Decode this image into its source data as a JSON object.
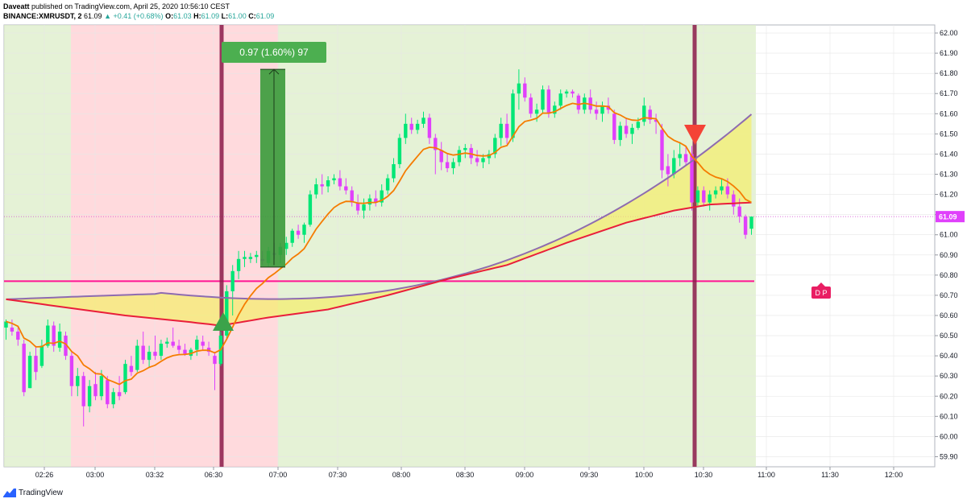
{
  "header": {
    "publisher": "Daveatt",
    "published_text": "published on TradingView.com, April 25, 2020 10:56:10 CEST",
    "symbol": "BINANCE:XMRUSDT, 2",
    "last": "61.09",
    "change": "+0.41 (+0.68%)",
    "o_label": "O:",
    "o_value": "61.03",
    "h_label": "H:",
    "h_value": "61.09",
    "l_label": "L:",
    "l_value": "61.00",
    "c_label": "C:",
    "c_value": "61.09"
  },
  "footer": {
    "brand": "TradingView"
  },
  "chart_data": {
    "type": "candlestick",
    "title": "",
    "xlabel": "",
    "ylabel": "",
    "ylim": [
      59.85,
      62.04
    ],
    "y_ticks": [
      "62.00",
      "61.90",
      "61.80",
      "61.70",
      "61.60",
      "61.50",
      "61.40",
      "61.30",
      "61.20",
      "61.10",
      "61.00",
      "60.90",
      "60.80",
      "60.70",
      "60.60",
      "60.50",
      "60.40",
      "60.30",
      "60.20",
      "60.10",
      "60.00",
      "59.90"
    ],
    "x_ticks": [
      "02:26",
      "03:00",
      "03:32",
      "06:30",
      "07:00",
      "07:30",
      "08:00",
      "08:30",
      "09:00",
      "09:30",
      "10:00",
      "10:30",
      "11:00",
      "11:30",
      "12:00"
    ],
    "last_price_label": "61.09",
    "trade_label": "0.97 (1.60%) 97",
    "dp_label": "D P",
    "colors": {
      "up": "#00e676",
      "down": "#e040fb",
      "ema": "#f57c00",
      "red_ma": "#e91e3a",
      "purple_ma": "#8e6bb0",
      "bg_red": "#ffcdd2",
      "bg_green": "#dcedc8",
      "fill": "#f5ee6a",
      "vline": "#8b1a4a",
      "magenta": "#ff1493"
    },
    "candles": [
      {
        "x": 0,
        "o": 60.54,
        "h": 60.58,
        "l": 60.48,
        "c": 60.57
      },
      {
        "x": 1,
        "o": 60.54,
        "h": 60.58,
        "l": 60.5,
        "c": 60.52
      },
      {
        "x": 2,
        "o": 60.52,
        "h": 60.55,
        "l": 60.45,
        "c": 60.48
      },
      {
        "x": 3,
        "o": 60.46,
        "h": 60.48,
        "l": 60.2,
        "c": 60.22
      },
      {
        "x": 4,
        "o": 60.24,
        "h": 60.42,
        "l": 60.24,
        "c": 60.4
      },
      {
        "x": 5,
        "o": 60.4,
        "h": 60.45,
        "l": 60.28,
        "c": 60.32
      },
      {
        "x": 6,
        "o": 60.35,
        "h": 60.48,
        "l": 60.34,
        "c": 60.45
      },
      {
        "x": 7,
        "o": 60.45,
        "h": 60.58,
        "l": 60.44,
        "c": 60.55
      },
      {
        "x": 8,
        "o": 60.55,
        "h": 60.57,
        "l": 60.42,
        "c": 60.45
      },
      {
        "x": 9,
        "o": 60.44,
        "h": 60.56,
        "l": 60.42,
        "c": 60.52
      },
      {
        "x": 10,
        "o": 60.5,
        "h": 60.52,
        "l": 60.38,
        "c": 60.4
      },
      {
        "x": 11,
        "o": 60.4,
        "h": 60.42,
        "l": 60.2,
        "c": 60.25
      },
      {
        "x": 12,
        "o": 60.25,
        "h": 60.34,
        "l": 60.2,
        "c": 60.3
      },
      {
        "x": 13,
        "o": 60.3,
        "h": 60.32,
        "l": 60.05,
        "c": 60.15
      },
      {
        "x": 14,
        "o": 60.15,
        "h": 60.28,
        "l": 60.12,
        "c": 60.25
      },
      {
        "x": 15,
        "o": 60.26,
        "h": 60.32,
        "l": 60.18,
        "c": 60.2
      },
      {
        "x": 16,
        "o": 60.2,
        "h": 60.33,
        "l": 60.18,
        "c": 60.3
      },
      {
        "x": 17,
        "o": 60.28,
        "h": 60.3,
        "l": 60.14,
        "c": 60.16
      },
      {
        "x": 18,
        "o": 60.16,
        "h": 60.24,
        "l": 60.14,
        "c": 60.22
      },
      {
        "x": 19,
        "o": 60.22,
        "h": 60.3,
        "l": 60.18,
        "c": 60.2
      },
      {
        "x": 20,
        "o": 60.22,
        "h": 60.38,
        "l": 60.21,
        "c": 60.36
      },
      {
        "x": 21,
        "o": 60.35,
        "h": 60.4,
        "l": 60.3,
        "c": 60.32
      },
      {
        "x": 22,
        "o": 60.33,
        "h": 60.48,
        "l": 60.32,
        "c": 60.45
      },
      {
        "x": 23,
        "o": 60.45,
        "h": 60.52,
        "l": 60.36,
        "c": 60.38
      },
      {
        "x": 24,
        "o": 60.38,
        "h": 60.45,
        "l": 60.34,
        "c": 60.42
      },
      {
        "x": 25,
        "o": 60.42,
        "h": 60.5,
        "l": 60.38,
        "c": 60.4
      },
      {
        "x": 26,
        "o": 60.4,
        "h": 60.48,
        "l": 60.38,
        "c": 60.46
      },
      {
        "x": 27,
        "o": 60.46,
        "h": 60.49,
        "l": 60.44,
        "c": 60.47
      },
      {
        "x": 28,
        "o": 60.47,
        "h": 60.54,
        "l": 60.44,
        "c": 60.45
      },
      {
        "x": 29,
        "o": 60.45,
        "h": 60.48,
        "l": 60.41,
        "c": 60.43
      },
      {
        "x": 30,
        "o": 60.43,
        "h": 60.46,
        "l": 60.4,
        "c": 60.41
      },
      {
        "x": 31,
        "o": 60.4,
        "h": 60.44,
        "l": 60.38,
        "c": 60.43
      },
      {
        "x": 32,
        "o": 60.43,
        "h": 60.5,
        "l": 60.4,
        "c": 60.48
      },
      {
        "x": 33,
        "o": 60.47,
        "h": 60.5,
        "l": 60.43,
        "c": 60.45
      },
      {
        "x": 34,
        "o": 60.44,
        "h": 60.47,
        "l": 60.4,
        "c": 60.42
      },
      {
        "x": 35,
        "o": 60.4,
        "h": 60.42,
        "l": 60.23,
        "c": 60.36
      },
      {
        "x": 36,
        "o": 60.36,
        "h": 60.52,
        "l": 60.35,
        "c": 60.5
      },
      {
        "x": 37,
        "o": 60.5,
        "h": 60.75,
        "l": 60.48,
        "c": 60.72
      },
      {
        "x": 38,
        "o": 60.72,
        "h": 60.85,
        "l": 60.6,
        "c": 60.82
      },
      {
        "x": 39,
        "o": 60.82,
        "h": 60.92,
        "l": 60.78,
        "c": 60.88
      },
      {
        "x": 40,
        "o": 60.88,
        "h": 60.92,
        "l": 60.84,
        "c": 60.89
      },
      {
        "x": 41,
        "o": 60.88,
        "h": 60.91,
        "l": 60.86,
        "c": 60.89
      },
      {
        "x": 42,
        "o": 60.89,
        "h": 60.92,
        "l": 60.86,
        "c": 60.9
      },
      {
        "x": 43,
        "o": 60.88,
        "h": 60.92,
        "l": 60.85,
        "c": 60.87
      },
      {
        "x": 44,
        "o": 60.86,
        "h": 60.94,
        "l": 60.84,
        "c": 60.92
      },
      {
        "x": 45,
        "o": 60.91,
        "h": 60.96,
        "l": 60.88,
        "c": 60.9
      },
      {
        "x": 46,
        "o": 60.9,
        "h": 60.96,
        "l": 60.86,
        "c": 60.94
      },
      {
        "x": 47,
        "o": 60.93,
        "h": 60.99,
        "l": 60.9,
        "c": 60.96
      },
      {
        "x": 48,
        "o": 60.96,
        "h": 61.03,
        "l": 60.94,
        "c": 61.02
      },
      {
        "x": 49,
        "o": 61.02,
        "h": 61.05,
        "l": 60.98,
        "c": 61.0
      },
      {
        "x": 50,
        "o": 61.0,
        "h": 61.06,
        "l": 60.96,
        "c": 61.05
      },
      {
        "x": 51,
        "o": 61.05,
        "h": 61.22,
        "l": 61.04,
        "c": 61.2
      },
      {
        "x": 52,
        "o": 61.2,
        "h": 61.28,
        "l": 61.18,
        "c": 61.25
      },
      {
        "x": 53,
        "o": 61.25,
        "h": 61.3,
        "l": 61.2,
        "c": 61.24
      },
      {
        "x": 54,
        "o": 61.24,
        "h": 61.29,
        "l": 61.21,
        "c": 61.27
      },
      {
        "x": 55,
        "o": 61.27,
        "h": 61.3,
        "l": 61.25,
        "c": 61.28
      },
      {
        "x": 56,
        "o": 61.28,
        "h": 61.32,
        "l": 61.22,
        "c": 61.24
      },
      {
        "x": 57,
        "o": 61.24,
        "h": 61.28,
        "l": 61.2,
        "c": 61.22
      },
      {
        "x": 58,
        "o": 61.22,
        "h": 61.24,
        "l": 61.14,
        "c": 61.16
      },
      {
        "x": 59,
        "o": 61.16,
        "h": 61.2,
        "l": 61.1,
        "c": 61.12
      },
      {
        "x": 60,
        "o": 61.12,
        "h": 61.18,
        "l": 61.08,
        "c": 61.15
      },
      {
        "x": 61,
        "o": 61.15,
        "h": 61.2,
        "l": 61.12,
        "c": 61.18
      },
      {
        "x": 62,
        "o": 61.18,
        "h": 61.22,
        "l": 61.14,
        "c": 61.16
      },
      {
        "x": 63,
        "o": 61.16,
        "h": 61.25,
        "l": 61.14,
        "c": 61.22
      },
      {
        "x": 64,
        "o": 61.22,
        "h": 61.3,
        "l": 61.2,
        "c": 61.28
      },
      {
        "x": 65,
        "o": 61.28,
        "h": 61.38,
        "l": 61.26,
        "c": 61.35
      },
      {
        "x": 66,
        "o": 61.35,
        "h": 61.5,
        "l": 61.33,
        "c": 61.48
      },
      {
        "x": 67,
        "o": 61.48,
        "h": 61.6,
        "l": 61.45,
        "c": 61.55
      },
      {
        "x": 68,
        "o": 61.55,
        "h": 61.58,
        "l": 61.5,
        "c": 61.52
      },
      {
        "x": 69,
        "o": 61.52,
        "h": 61.57,
        "l": 61.5,
        "c": 61.55
      },
      {
        "x": 70,
        "o": 61.55,
        "h": 61.61,
        "l": 61.53,
        "c": 61.58
      },
      {
        "x": 71,
        "o": 61.58,
        "h": 61.6,
        "l": 61.45,
        "c": 61.48
      },
      {
        "x": 72,
        "o": 61.48,
        "h": 61.5,
        "l": 61.3,
        "c": 61.42
      },
      {
        "x": 73,
        "o": 61.42,
        "h": 61.46,
        "l": 61.32,
        "c": 61.36
      },
      {
        "x": 74,
        "o": 61.36,
        "h": 61.4,
        "l": 61.31,
        "c": 61.33
      },
      {
        "x": 75,
        "o": 61.33,
        "h": 61.38,
        "l": 61.3,
        "c": 61.36
      },
      {
        "x": 76,
        "o": 61.36,
        "h": 61.44,
        "l": 61.34,
        "c": 61.42
      },
      {
        "x": 77,
        "o": 61.42,
        "h": 61.45,
        "l": 61.38,
        "c": 61.43
      },
      {
        "x": 78,
        "o": 61.43,
        "h": 61.45,
        "l": 61.35,
        "c": 61.38
      },
      {
        "x": 79,
        "o": 61.38,
        "h": 61.42,
        "l": 61.34,
        "c": 61.36
      },
      {
        "x": 80,
        "o": 61.36,
        "h": 61.4,
        "l": 61.33,
        "c": 61.38
      },
      {
        "x": 81,
        "o": 61.38,
        "h": 61.42,
        "l": 61.35,
        "c": 61.4
      },
      {
        "x": 82,
        "o": 61.4,
        "h": 61.5,
        "l": 61.38,
        "c": 61.48
      },
      {
        "x": 83,
        "o": 61.48,
        "h": 61.58,
        "l": 61.44,
        "c": 61.55
      },
      {
        "x": 84,
        "o": 61.55,
        "h": 61.6,
        "l": 61.45,
        "c": 61.48
      },
      {
        "x": 85,
        "o": 61.48,
        "h": 61.72,
        "l": 61.46,
        "c": 61.7
      },
      {
        "x": 86,
        "o": 61.7,
        "h": 61.82,
        "l": 61.62,
        "c": 61.75
      },
      {
        "x": 87,
        "o": 61.75,
        "h": 61.78,
        "l": 61.66,
        "c": 61.68
      },
      {
        "x": 88,
        "o": 61.68,
        "h": 61.7,
        "l": 61.58,
        "c": 61.6
      },
      {
        "x": 89,
        "o": 61.6,
        "h": 61.65,
        "l": 61.56,
        "c": 61.62
      },
      {
        "x": 90,
        "o": 61.62,
        "h": 61.74,
        "l": 61.6,
        "c": 61.72
      },
      {
        "x": 91,
        "o": 61.72,
        "h": 61.74,
        "l": 61.58,
        "c": 61.6
      },
      {
        "x": 92,
        "o": 61.6,
        "h": 61.66,
        "l": 61.58,
        "c": 61.64
      },
      {
        "x": 93,
        "o": 61.64,
        "h": 61.72,
        "l": 61.62,
        "c": 61.7
      },
      {
        "x": 94,
        "o": 61.7,
        "h": 61.72,
        "l": 61.68,
        "c": 61.71
      },
      {
        "x": 95,
        "o": 61.71,
        "h": 61.72,
        "l": 61.68,
        "c": 61.7
      },
      {
        "x": 96,
        "o": 61.69,
        "h": 61.7,
        "l": 61.6,
        "c": 61.62
      },
      {
        "x": 97,
        "o": 61.62,
        "h": 61.7,
        "l": 61.6,
        "c": 61.68
      },
      {
        "x": 98,
        "o": 61.68,
        "h": 61.72,
        "l": 61.6,
        "c": 61.62
      },
      {
        "x": 99,
        "o": 61.62,
        "h": 61.66,
        "l": 61.57,
        "c": 61.6
      },
      {
        "x": 100,
        "o": 61.6,
        "h": 61.66,
        "l": 61.56,
        "c": 61.64
      },
      {
        "x": 101,
        "o": 61.64,
        "h": 61.68,
        "l": 61.6,
        "c": 61.62
      },
      {
        "x": 102,
        "o": 61.6,
        "h": 61.62,
        "l": 61.45,
        "c": 61.47
      },
      {
        "x": 103,
        "o": 61.47,
        "h": 61.56,
        "l": 61.44,
        "c": 61.54
      },
      {
        "x": 104,
        "o": 61.54,
        "h": 61.58,
        "l": 61.48,
        "c": 61.5
      },
      {
        "x": 105,
        "o": 61.5,
        "h": 61.55,
        "l": 61.45,
        "c": 61.53
      },
      {
        "x": 106,
        "o": 61.53,
        "h": 61.58,
        "l": 61.52,
        "c": 61.56
      },
      {
        "x": 107,
        "o": 61.56,
        "h": 61.68,
        "l": 61.54,
        "c": 61.64
      },
      {
        "x": 108,
        "o": 61.62,
        "h": 61.64,
        "l": 61.55,
        "c": 61.57
      },
      {
        "x": 109,
        "o": 61.57,
        "h": 61.6,
        "l": 61.5,
        "c": 61.56
      },
      {
        "x": 110,
        "o": 61.52,
        "h": 61.55,
        "l": 61.28,
        "c": 61.32
      },
      {
        "x": 111,
        "o": 61.34,
        "h": 61.4,
        "l": 61.24,
        "c": 61.3
      },
      {
        "x": 112,
        "o": 61.3,
        "h": 61.42,
        "l": 61.28,
        "c": 61.38
      },
      {
        "x": 113,
        "o": 61.38,
        "h": 61.46,
        "l": 61.34,
        "c": 61.4
      },
      {
        "x": 114,
        "o": 61.4,
        "h": 61.44,
        "l": 61.34,
        "c": 61.36
      },
      {
        "x": 115,
        "o": 61.4,
        "h": 61.44,
        "l": 61.12,
        "c": 61.16
      },
      {
        "x": 116,
        "o": 61.16,
        "h": 61.24,
        "l": 61.14,
        "c": 61.22
      },
      {
        "x": 117,
        "o": 61.22,
        "h": 61.24,
        "l": 61.14,
        "c": 61.16
      },
      {
        "x": 118,
        "o": 61.16,
        "h": 61.22,
        "l": 61.12,
        "c": 61.2
      },
      {
        "x": 119,
        "o": 61.2,
        "h": 61.24,
        "l": 61.18,
        "c": 61.22
      },
      {
        "x": 120,
        "o": 61.22,
        "h": 61.28,
        "l": 61.2,
        "c": 61.24
      },
      {
        "x": 121,
        "o": 61.24,
        "h": 61.28,
        "l": 61.18,
        "c": 61.2
      },
      {
        "x": 122,
        "o": 61.2,
        "h": 61.22,
        "l": 61.1,
        "c": 61.14
      },
      {
        "x": 123,
        "o": 61.14,
        "h": 61.18,
        "l": 61.06,
        "c": 61.09
      },
      {
        "x": 124,
        "o": 61.09,
        "h": 61.1,
        "l": 60.98,
        "c": 61.0
      },
      {
        "x": 125,
        "o": 61.03,
        "h": 61.09,
        "l": 61.0,
        "c": 61.09
      }
    ]
  }
}
